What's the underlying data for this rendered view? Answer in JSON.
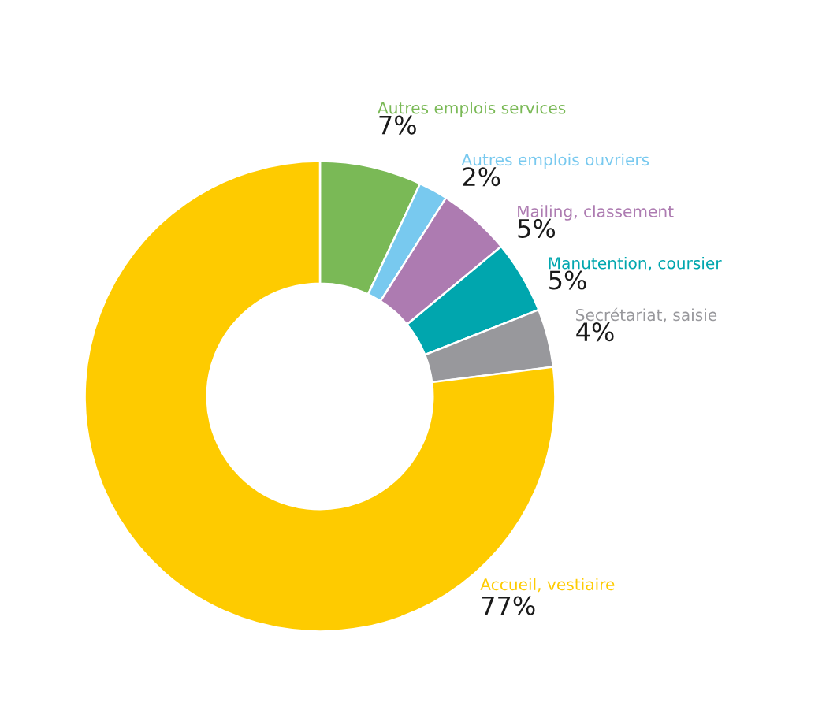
{
  "chart_data": {
    "type": "donut",
    "categories": [
      "Autres emplois services",
      "Autres emplois ouvriers",
      "Mailing, classement",
      "Manutention, coursier",
      "Secrétariat, saisie",
      "Accueil, vestiaire"
    ],
    "values": [
      7,
      2,
      5,
      5,
      4,
      77
    ],
    "value_labels": [
      "7%",
      "2%",
      "5%",
      "5%",
      "4%",
      "77%"
    ],
    "colors": [
      "#7ab956",
      "#78c9ef",
      "#ad7bb1",
      "#00a6ae",
      "#98989c",
      "#fecb00"
    ],
    "legend": false
  }
}
